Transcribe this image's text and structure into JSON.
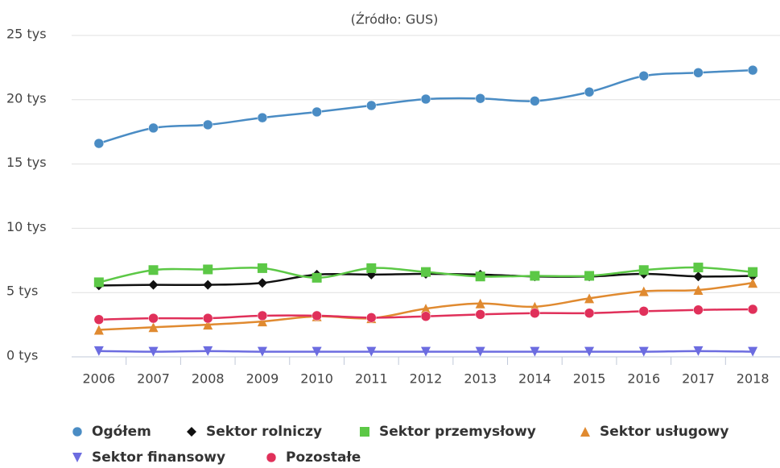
{
  "chart_data": {
    "type": "line",
    "subtitle": "(Źródło: GUS)",
    "categories": [
      "2006",
      "2007",
      "2008",
      "2009",
      "2010",
      "2011",
      "2012",
      "2013",
      "2014",
      "2015",
      "2016",
      "2017",
      "2018"
    ],
    "ylim": [
      0,
      25
    ],
    "yticks": [
      {
        "value": 0,
        "label": "0 tys"
      },
      {
        "value": 5,
        "label": "5 tys"
      },
      {
        "value": 10,
        "label": "10 tys"
      },
      {
        "value": 15,
        "label": "15 tys"
      },
      {
        "value": 20,
        "label": "20 tys"
      },
      {
        "value": 25,
        "label": "25 tys"
      }
    ],
    "grid": true,
    "legend": "bottom",
    "series": [
      {
        "name": "Ogółem",
        "color": "#4a8cc4",
        "marker": "circle",
        "values": [
          16.6,
          17.8,
          18.05,
          18.6,
          19.05,
          19.55,
          20.05,
          20.1,
          19.9,
          20.6,
          21.85,
          22.1,
          22.3
        ]
      },
      {
        "name": "Sektor rolniczy",
        "color": "#111111",
        "marker": "diamond",
        "values": [
          5.55,
          5.6,
          5.6,
          5.75,
          6.4,
          6.4,
          6.45,
          6.4,
          6.25,
          6.25,
          6.45,
          6.25,
          6.3
        ]
      },
      {
        "name": "Sektor przemysłowy",
        "color": "#5cc846",
        "marker": "square",
        "values": [
          5.8,
          6.75,
          6.8,
          6.9,
          6.15,
          6.9,
          6.6,
          6.25,
          6.3,
          6.3,
          6.75,
          6.95,
          6.6
        ]
      },
      {
        "name": "Sektor usługowy",
        "color": "#e08a30",
        "marker": "triangle",
        "values": [
          2.1,
          2.3,
          2.5,
          2.75,
          3.15,
          3.0,
          3.75,
          4.15,
          3.9,
          4.55,
          5.1,
          5.2,
          5.75
        ]
      },
      {
        "name": "Sektor finansowy",
        "color": "#6c6ce0",
        "marker": "triangle-down",
        "values": [
          0.45,
          0.4,
          0.45,
          0.4,
          0.4,
          0.4,
          0.4,
          0.4,
          0.4,
          0.4,
          0.4,
          0.45,
          0.4
        ]
      },
      {
        "name": "Pozostałe",
        "color": "#e0305a",
        "marker": "circle",
        "values": [
          2.9,
          3.0,
          3.0,
          3.2,
          3.2,
          3.05,
          3.15,
          3.3,
          3.4,
          3.4,
          3.55,
          3.65,
          3.7
        ]
      }
    ]
  }
}
